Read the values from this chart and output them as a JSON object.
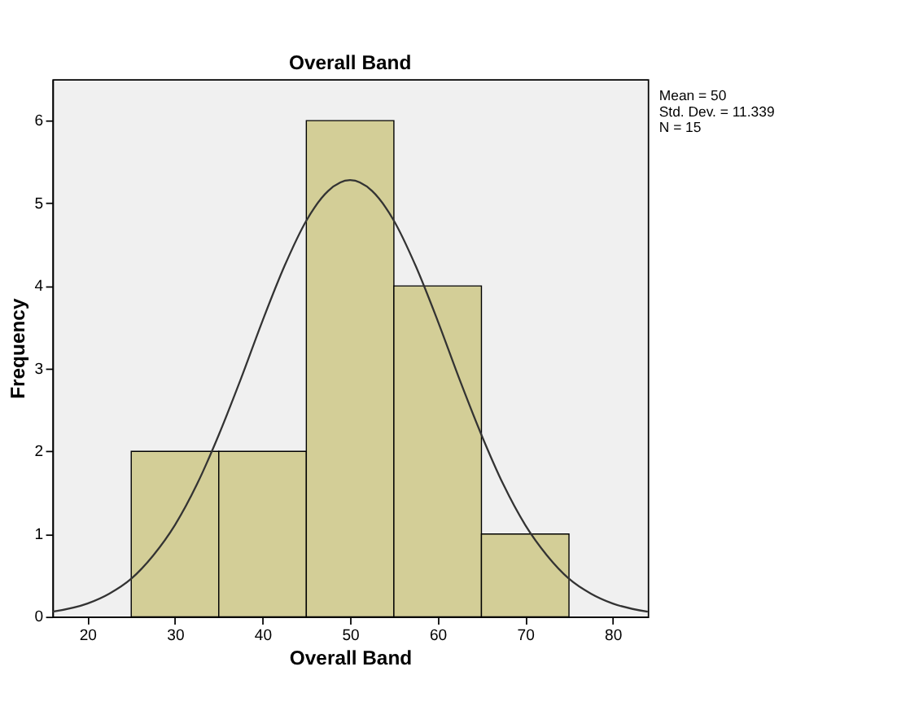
{
  "chart_data": {
    "type": "histogram",
    "title": "Overall Band",
    "xlabel": "Overall Band",
    "ylabel": "Frequency",
    "bins": [
      25,
      35,
      45,
      55,
      65,
      75
    ],
    "values": [
      2,
      2,
      6,
      4,
      1
    ],
    "color": "#d3ce97",
    "series": [
      {
        "type": "line",
        "color": "#333333",
        "x": [
          16,
          20,
          22.5,
          25,
          27.5,
          30,
          32.5,
          35,
          37.5,
          40,
          42.5,
          45,
          47.5,
          50,
          52.5,
          55,
          57.5,
          60,
          62.5,
          65,
          67.5,
          70,
          72.5,
          75,
          77.5,
          80,
          84
        ],
        "values": [
          0.06,
          0.16,
          0.28,
          0.46,
          0.74,
          1.11,
          1.6,
          2.2,
          2.87,
          3.58,
          4.24,
          4.79,
          5.15,
          5.28,
          5.15,
          4.79,
          4.24,
          3.58,
          2.87,
          2.2,
          1.6,
          1.11,
          0.74,
          0.46,
          0.28,
          0.16,
          0.06
        ]
      }
    ],
    "xlim": [
      16,
      84
    ],
    "xticks": [
      20,
      30,
      40,
      50,
      60,
      70,
      80
    ],
    "ylim": [
      0,
      6.5
    ],
    "yticks": [
      0,
      1,
      2,
      3,
      4,
      5,
      6
    ],
    "grid": false,
    "annotations": [
      "Mean = 50",
      "Std. Dev. = 11.339",
      "N = 15"
    ]
  }
}
